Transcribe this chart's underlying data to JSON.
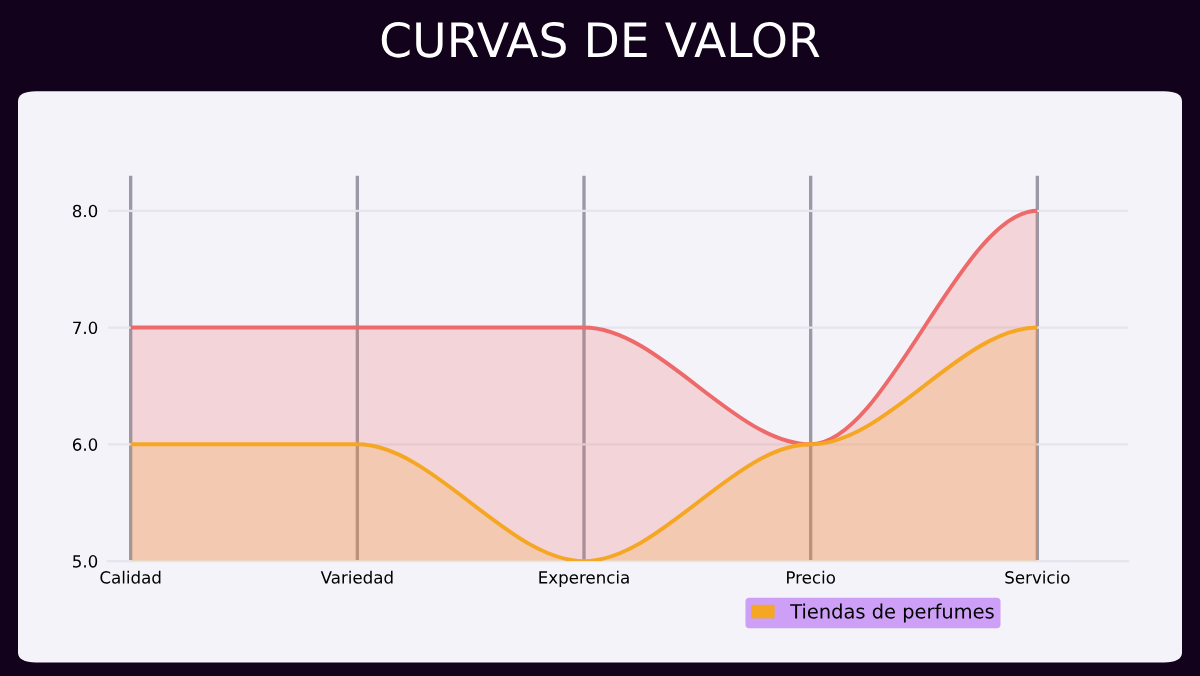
{
  "chart_data": {
    "type": "area",
    "title": "CURVAS DE VALOR",
    "categories": [
      "Calidad",
      "Variedad",
      "Experencia",
      "Precio",
      "Servicio"
    ],
    "series": [
      {
        "color": "#ee6a6a",
        "values": [
          7.0,
          7.0,
          7.0,
          6.0,
          8.0
        ]
      },
      {
        "name": "Tiendas de perfumes",
        "color": "#f5a623",
        "values": [
          6.0,
          6.0,
          5.0,
          6.0,
          7.0
        ]
      }
    ],
    "ylim": [
      5.0,
      8.3
    ],
    "yticks": [
      {
        "value": 5.0,
        "label": "5.0"
      },
      {
        "value": 6.0,
        "label": "6.0"
      },
      {
        "value": 7.0,
        "label": "7.0"
      },
      {
        "value": 8.0,
        "label": "8.0"
      }
    ],
    "grid": true,
    "legend": "bottom"
  }
}
